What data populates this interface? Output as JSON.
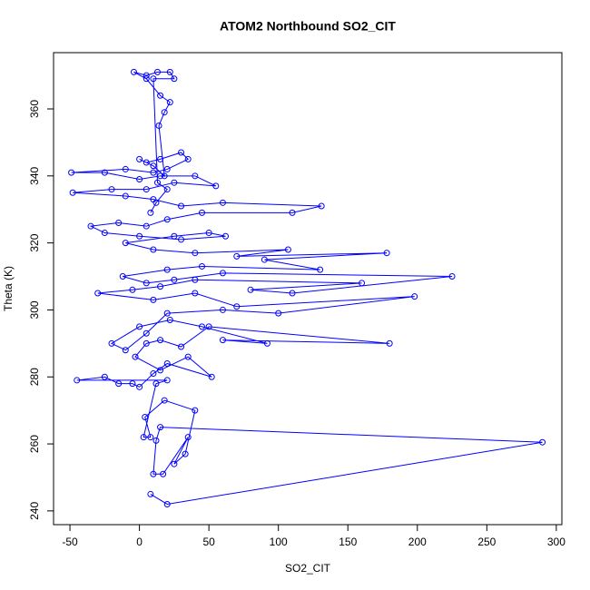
{
  "chart_data": {
    "type": "line",
    "title": "ATOM2 Northbound SO2_CIT",
    "x_label": "SO2_CIT",
    "y_label": "Theta (K)",
    "color": "#0000ff",
    "markers": true,
    "grid": false,
    "xlim": [
      -61.8,
      304
    ],
    "ylim": [
      235.9,
      376.8
    ],
    "xticks": [
      -50,
      0,
      50,
      100,
      150,
      200,
      250,
      300
    ],
    "yticks": [
      240,
      260,
      280,
      300,
      320,
      340,
      360
    ],
    "x": [
      8,
      20,
      290,
      15,
      12,
      10,
      17,
      35,
      25,
      33,
      40,
      18,
      4,
      8,
      3,
      12,
      20,
      -45,
      -25,
      -15,
      -5,
      0,
      10,
      20,
      52,
      35,
      15,
      -3,
      5,
      15,
      30,
      50,
      180,
      60,
      92,
      45,
      22,
      0,
      -20,
      -10,
      5,
      20,
      60,
      100,
      198,
      70,
      40,
      10,
      -30,
      -5,
      15,
      40,
      160,
      80,
      110,
      225,
      60,
      25,
      5,
      -12,
      20,
      45,
      130,
      90,
      178,
      70,
      107,
      40,
      10,
      -10,
      25,
      50,
      62,
      30,
      0,
      -25,
      -35,
      -15,
      5,
      20,
      45,
      110,
      131,
      60,
      30,
      10,
      -10,
      -48,
      -20,
      5,
      25,
      55,
      40,
      15,
      0,
      -25,
      -49,
      -10,
      10,
      20,
      35,
      30,
      15,
      5,
      0,
      10,
      18,
      14,
      18,
      22,
      15,
      5,
      -4,
      5,
      13,
      22,
      25,
      10,
      13,
      20,
      12,
      8
    ],
    "values": [
      245,
      242,
      260.5,
      265,
      261,
      251,
      251,
      262,
      254,
      257,
      270,
      273,
      268,
      262,
      262,
      278,
      279,
      279,
      280,
      278,
      278,
      277,
      281,
      284,
      280,
      286,
      282,
      286,
      290,
      291,
      289,
      295,
      290,
      291,
      290,
      295,
      297,
      295,
      290,
      288,
      293,
      299,
      300,
      299,
      304,
      301,
      305,
      303,
      305,
      306,
      307,
      309,
      308,
      306,
      305,
      310,
      311,
      309,
      308,
      310,
      312,
      313,
      312,
      315,
      317,
      316,
      318,
      317,
      318,
      320,
      322,
      323,
      322,
      321,
      322,
      323,
      325,
      326,
      325,
      327,
      329,
      329,
      331,
      332,
      331,
      333,
      334,
      335,
      336,
      336,
      338,
      337,
      340,
      340,
      339,
      341,
      341,
      342,
      341,
      342,
      345,
      347,
      345,
      344,
      345,
      343,
      340,
      355,
      359,
      362,
      364,
      369,
      371,
      370,
      371,
      371,
      369,
      369,
      338,
      336,
      332,
      329
    ]
  }
}
